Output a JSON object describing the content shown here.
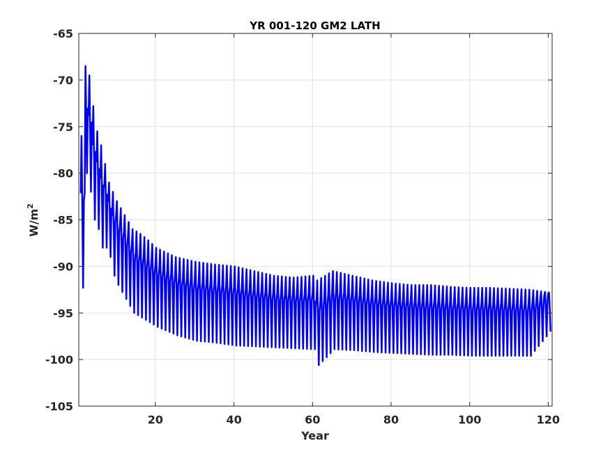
{
  "chart_data": {
    "type": "line",
    "title": "YR 001-120 GM2 LATH",
    "xlabel": "Year",
    "ylabel_base": "W/m",
    "ylabel_sup": "2",
    "xlim": [
      0.5,
      121
    ],
    "ylim": [
      -105,
      -65
    ],
    "xticks": [
      20,
      40,
      60,
      80,
      100,
      120
    ],
    "yticks": [
      -65,
      -70,
      -75,
      -80,
      -85,
      -90,
      -95,
      -100,
      -105
    ],
    "grid": true,
    "legend": "none",
    "series": [
      {
        "color": "#0000ff",
        "line_width": 2.5,
        "annual_points": [
          {
            "year": 1,
            "max": -76,
            "min": -92.3
          },
          {
            "year": 2,
            "max": -68.5,
            "min": -80
          },
          {
            "year": 3,
            "max": -69.5,
            "min": -82
          },
          {
            "year": 4,
            "max": -72.8,
            "min": -85
          },
          {
            "year": 5,
            "max": -75.5,
            "min": -86
          },
          {
            "year": 6,
            "max": -77,
            "min": -88
          },
          {
            "year": 7,
            "max": -79,
            "min": -88
          },
          {
            "year": 8,
            "max": -81,
            "min": -89
          },
          {
            "year": 9,
            "max": -82,
            "min": -91
          },
          {
            "year": 10,
            "max": -83,
            "min": -92
          },
          {
            "year": 12,
            "max": -84.5,
            "min": -93.5
          },
          {
            "year": 14,
            "max": -86,
            "min": -95
          },
          {
            "year": 16,
            "max": -86.5,
            "min": -95.5
          },
          {
            "year": 18,
            "max": -87.2,
            "min": -96
          },
          {
            "year": 20,
            "max": -88,
            "min": -96.5
          },
          {
            "year": 25,
            "max": -89,
            "min": -97.4
          },
          {
            "year": 30,
            "max": -89.5,
            "min": -98
          },
          {
            "year": 35,
            "max": -89.8,
            "min": -98.2
          },
          {
            "year": 40,
            "max": -90,
            "min": -98.5
          },
          {
            "year": 45,
            "max": -90.5,
            "min": -98.6
          },
          {
            "year": 50,
            "max": -91,
            "min": -98.7
          },
          {
            "year": 55,
            "max": -91.2,
            "min": -98.8
          },
          {
            "year": 60,
            "max": -91,
            "min": -98.9
          },
          {
            "year": 61,
            "max": -91.5,
            "min": -100.6
          },
          {
            "year": 65,
            "max": -90.5,
            "min": -98.9
          },
          {
            "year": 70,
            "max": -91,
            "min": -99
          },
          {
            "year": 75,
            "max": -91.5,
            "min": -99.2
          },
          {
            "year": 80,
            "max": -91.8,
            "min": -99.3
          },
          {
            "year": 85,
            "max": -92,
            "min": -99.4
          },
          {
            "year": 90,
            "max": -92,
            "min": -99.5
          },
          {
            "year": 95,
            "max": -92.2,
            "min": -99.5
          },
          {
            "year": 100,
            "max": -92.3,
            "min": -99.6
          },
          {
            "year": 105,
            "max": -92.3,
            "min": -99.6
          },
          {
            "year": 110,
            "max": -92.4,
            "min": -99.6
          },
          {
            "year": 115,
            "max": -92.5,
            "min": -99.6
          },
          {
            "year": 120,
            "max": -92.8,
            "min": -97
          }
        ]
      }
    ]
  }
}
